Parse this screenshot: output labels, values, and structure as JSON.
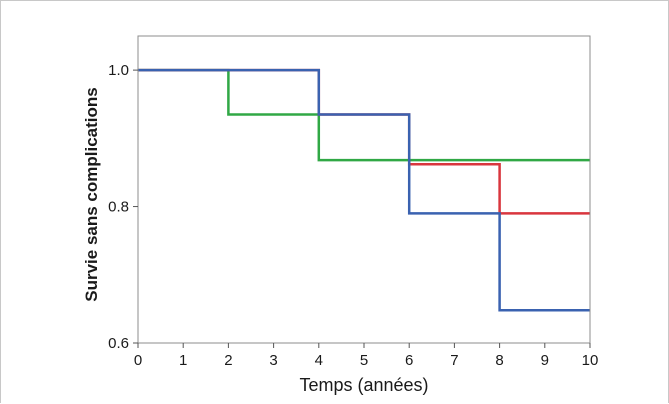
{
  "chart_data": {
    "type": "line",
    "step": true,
    "xlabel": "Temps (années)",
    "ylabel": "Survie sans complications",
    "xlim": [
      0,
      10
    ],
    "ylim": [
      0.6,
      1.05
    ],
    "x_ticks": [
      0,
      1,
      2,
      3,
      4,
      5,
      6,
      7,
      8,
      9,
      10
    ],
    "x_tick_labels": [
      "0",
      "1",
      "2",
      "3",
      "4",
      "5",
      "6",
      "7",
      "8",
      "9",
      "10"
    ],
    "y_ticks": [
      0.6,
      0.8,
      1.0
    ],
    "y_tick_labels": [
      "0.6",
      "0.8",
      "1.0"
    ],
    "grid": false,
    "legend": false,
    "series": [
      {
        "color": "#30a845",
        "x": [
          0,
          2,
          4,
          10
        ],
        "y": [
          1.0,
          0.935,
          0.868,
          0.868
        ]
      },
      {
        "color": "#d9363e",
        "x": [
          0,
          4,
          6,
          8,
          10
        ],
        "y": [
          1.0,
          0.935,
          0.862,
          0.79,
          0.79
        ]
      },
      {
        "color": "#3a62b0",
        "x": [
          0,
          4,
          6,
          8,
          10
        ],
        "y": [
          1.0,
          0.935,
          0.79,
          0.648,
          0.648
        ]
      }
    ]
  }
}
